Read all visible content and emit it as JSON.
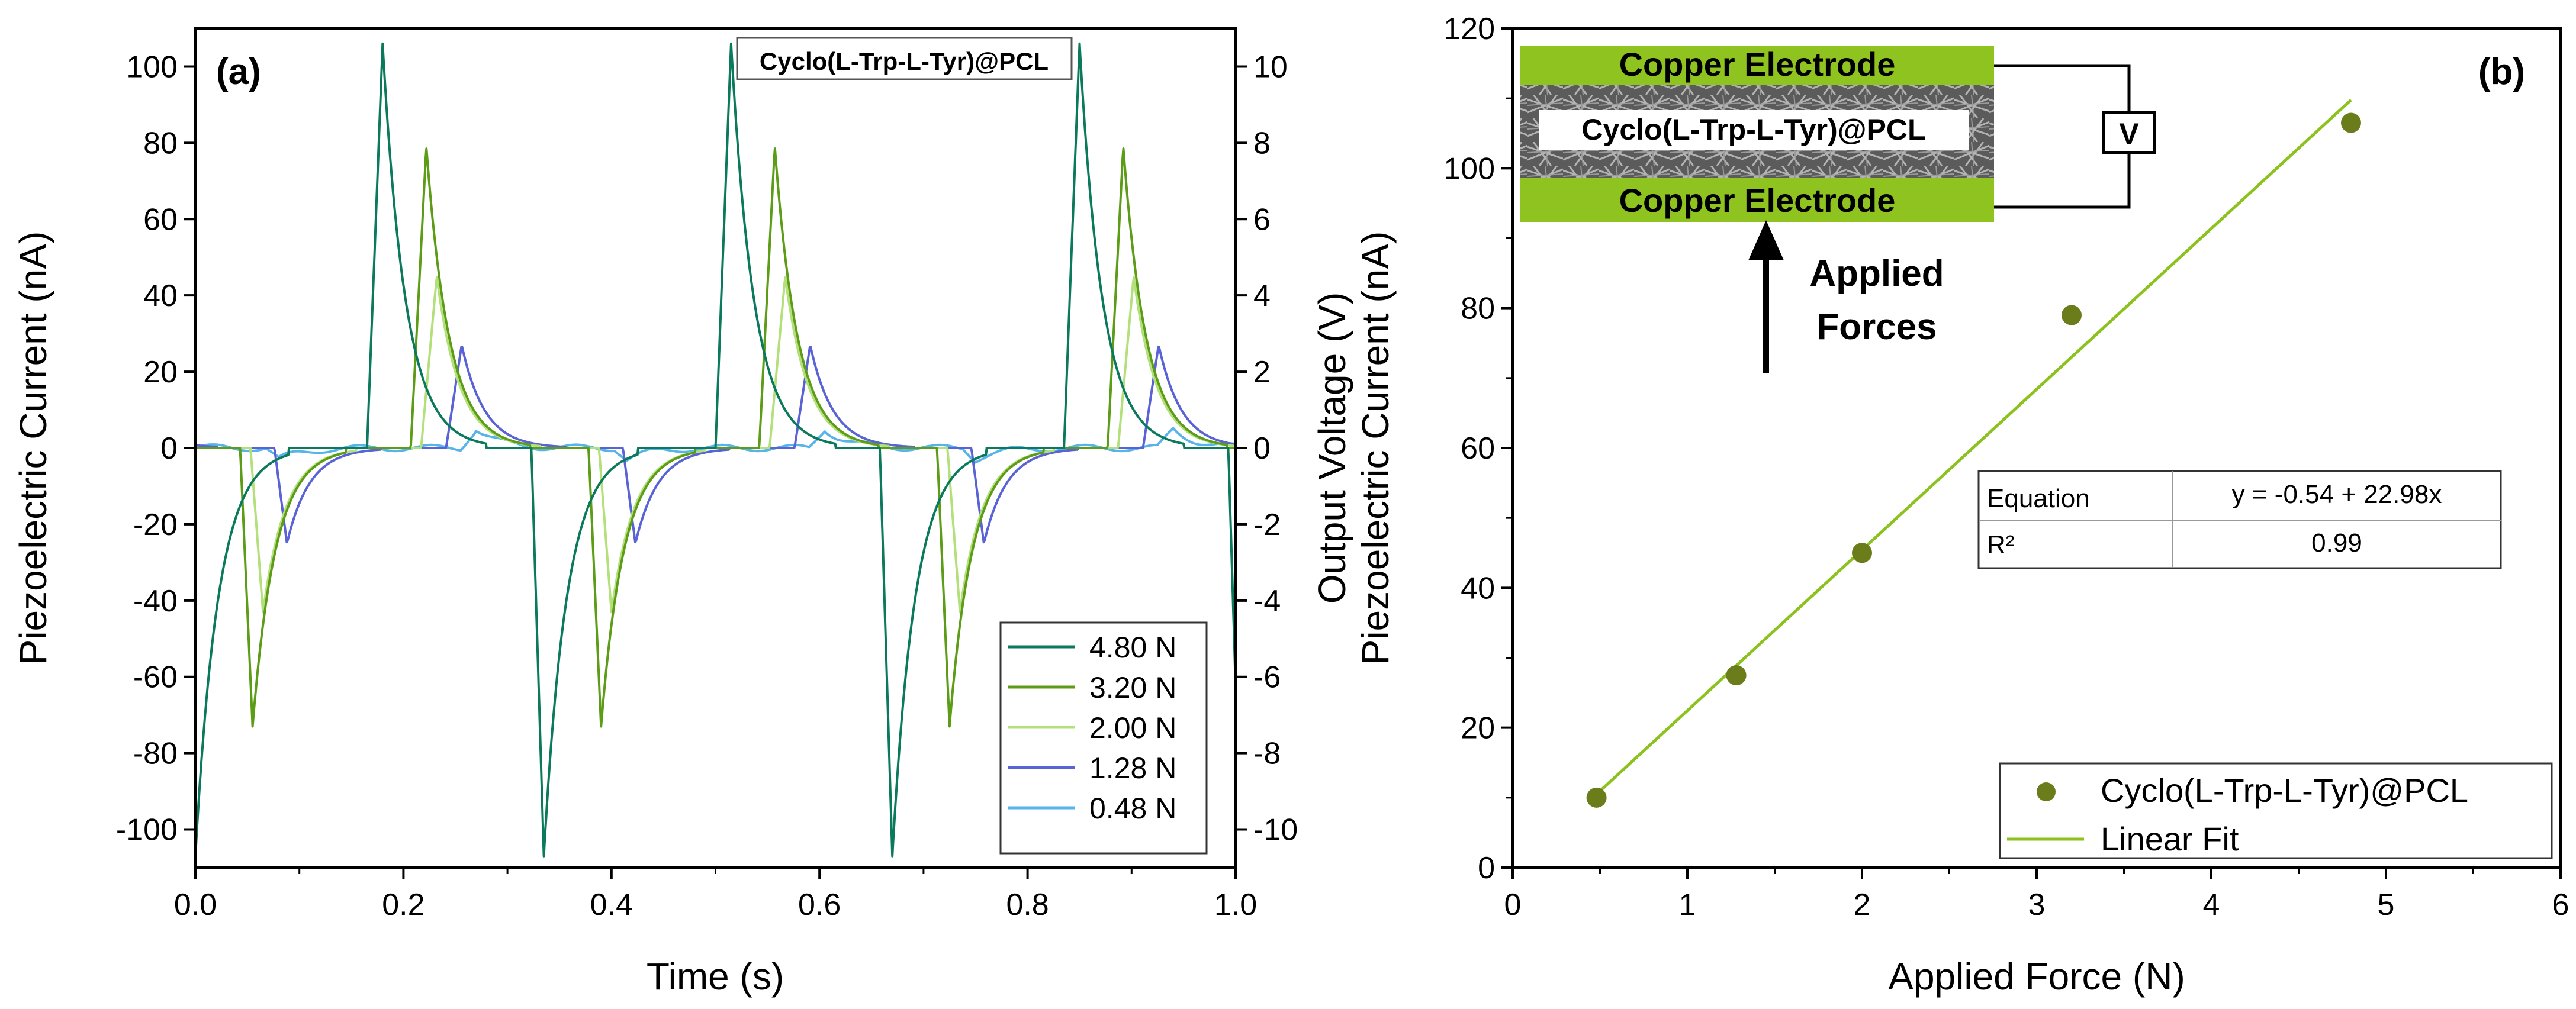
{
  "chart_data": [
    {
      "type": "line",
      "panel_label": "(a)",
      "title": "Cyclo(L-Trp-L-Tyr)@PCL",
      "xlabel": "Time (s)",
      "ylabel": "Piezoelectric Current (nA)",
      "y2label": "Output Voltage (V)",
      "xlim": [
        0,
        1
      ],
      "ylim": [
        -110,
        110
      ],
      "y2lim": [
        -11,
        11
      ],
      "xticks": [
        "0.0",
        "0.2",
        "0.4",
        "0.6",
        "0.8",
        "1.0"
      ],
      "xtick_values": [
        0,
        0.2,
        0.4,
        0.6,
        0.8,
        1.0
      ],
      "yticks": [
        "-100",
        "-80",
        "-60",
        "-40",
        "-20",
        "0",
        "20",
        "40",
        "60",
        "80",
        "100"
      ],
      "ytick_values": [
        -100,
        -80,
        -60,
        -40,
        -20,
        0,
        20,
        40,
        60,
        80,
        100
      ],
      "y2ticks": [
        "-10",
        "-8",
        "-6",
        "-4",
        "-2",
        "0",
        "2",
        "4",
        "6",
        "8",
        "10"
      ],
      "y2tick_values": [
        -10,
        -8,
        -6,
        -4,
        -2,
        0,
        2,
        4,
        6,
        8,
        10
      ],
      "legend_position": "bottom-right",
      "grid": false,
      "cycle_period_s": 0.335,
      "series": [
        {
          "name": "4.80 N",
          "color": "#0b7a5c",
          "neg_time": 0.0,
          "neg_peak": -107,
          "pos_time": 0.18,
          "pos_peak": 106
        },
        {
          "name": "3.20 N",
          "color": "#5c9c16",
          "neg_time": 0.055,
          "neg_peak": -73,
          "pos_time": 0.222,
          "pos_peak": 79
        },
        {
          "name": "2.00 N",
          "color": "#b3e07a",
          "neg_time": 0.065,
          "neg_peak": -43,
          "pos_time": 0.232,
          "pos_peak": 45
        },
        {
          "name": "1.28 N",
          "color": "#5a63d6",
          "neg_time": 0.088,
          "neg_peak": -25,
          "pos_time": 0.256,
          "pos_peak": 27
        },
        {
          "name": "0.48 N",
          "color": "#58b4e8",
          "neg_time": 0.08,
          "neg_peak": -3,
          "pos_time": 0.27,
          "pos_peak": 5
        }
      ]
    },
    {
      "type": "scatter",
      "panel_label": "(b)",
      "xlabel": "Applied Force (N)",
      "ylabel": "Piezoelectric Current (nA)",
      "xlim": [
        0,
        6
      ],
      "ylim": [
        0,
        120
      ],
      "xticks": [
        "0",
        "1",
        "2",
        "3",
        "4",
        "5",
        "6"
      ],
      "xtick_values": [
        0,
        1,
        2,
        3,
        4,
        5,
        6
      ],
      "yticks": [
        "0",
        "20",
        "40",
        "60",
        "80",
        "100",
        "120"
      ],
      "ytick_values": [
        0,
        20,
        40,
        60,
        80,
        100,
        120
      ],
      "legend_position": "bottom-right",
      "grid": false,
      "series": [
        {
          "name": "Cyclo(L-Trp-L-Tyr)@PCL",
          "color": "#6b7d1a",
          "x": [
            0.48,
            1.28,
            2.0,
            3.2,
            4.8
          ],
          "y": [
            10,
            27.5,
            45,
            79,
            106.5
          ]
        },
        {
          "name": "Linear Fit",
          "color": "#8cc21e",
          "intercept": -0.54,
          "slope": 22.98,
          "x_range": [
            0.48,
            4.8
          ]
        }
      ],
      "fit_table": {
        "row1_label": "Equation",
        "row1_value": "y = -0.54 + 22.98x",
        "row2_label": "R²",
        "row2_value": "0.99"
      },
      "inset": {
        "electrode_top": "Copper Electrode",
        "electrode_bottom": "Copper Electrode",
        "film_label": "Cyclo(L-Trp-L-Tyr)@PCL",
        "meter_label": "V",
        "force_label_line1": "Applied",
        "force_label_line2": "Forces"
      }
    }
  ]
}
